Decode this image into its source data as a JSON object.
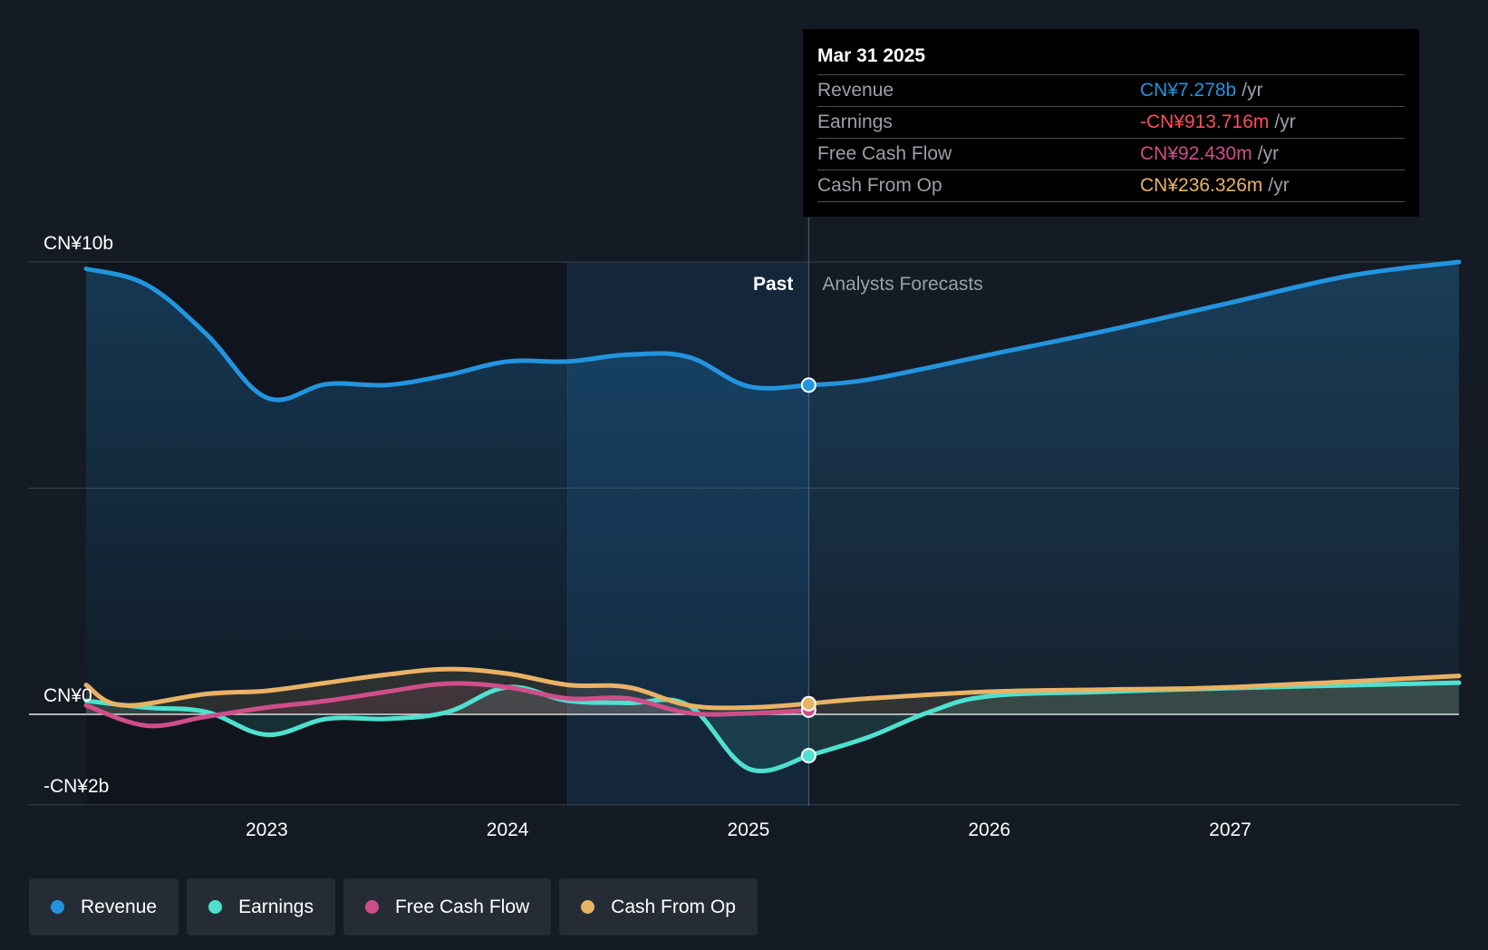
{
  "colors": {
    "background": "#151b24",
    "revenue": "#2394df",
    "earnings": "#4fe0d0",
    "free_cash_flow": "#cf4e8a",
    "cash_from_op": "#e9b265",
    "negative": "#ff4d5a"
  },
  "tooltip": {
    "date": "Mar 31 2025",
    "rows": [
      {
        "label": "Revenue",
        "value": "CN¥7.278b",
        "unit": "/yr",
        "color": "#2394df"
      },
      {
        "label": "Earnings",
        "value": "-CN¥913.716m",
        "unit": "/yr",
        "color": "#ff4d5a"
      },
      {
        "label": "Free Cash Flow",
        "value": "CN¥92.430m",
        "unit": "/yr",
        "color": "#cf4e8a"
      },
      {
        "label": "Cash From Op",
        "value": "CN¥236.326m",
        "unit": "/yr",
        "color": "#e9b265"
      }
    ]
  },
  "legend": [
    {
      "label": "Revenue",
      "color": "#2394df"
    },
    {
      "label": "Earnings",
      "color": "#4fe0d0"
    },
    {
      "label": "Free Cash Flow",
      "color": "#cf4e8a"
    },
    {
      "label": "Cash From Op",
      "color": "#e9b265"
    }
  ],
  "chart_data": {
    "type": "line",
    "title": "",
    "xlabel": "",
    "ylabel": "",
    "y_unit": "CN¥ billions",
    "x_unit": "year",
    "xlim": [
      2022.25,
      2027.95
    ],
    "ylim": [
      -2,
      10
    ],
    "y_ticks": [
      {
        "value": 10,
        "label": "CN¥10b"
      },
      {
        "value": 0,
        "label": "CN¥0"
      },
      {
        "value": -2,
        "label": "-CN¥2b"
      }
    ],
    "x_ticks": [
      {
        "value": 2023,
        "label": "2023"
      },
      {
        "value": 2024,
        "label": "2024"
      },
      {
        "value": 2025,
        "label": "2025"
      },
      {
        "value": 2026,
        "label": "2026"
      },
      {
        "value": 2027,
        "label": "2027"
      }
    ],
    "gridlines_y": [
      10,
      5,
      0,
      -2
    ],
    "past_label": "Past",
    "forecast_label": "Analysts Forecasts",
    "divider_x": 2025.25,
    "highlight_band_start": 2024.25,
    "legend_position": "bottom-left",
    "series": [
      {
        "name": "Revenue",
        "color": "#2394df",
        "fill": true,
        "past": [
          [
            2022.25,
            9.85
          ],
          [
            2022.5,
            9.5
          ],
          [
            2022.75,
            8.4
          ],
          [
            2023.0,
            7.0
          ],
          [
            2023.25,
            7.3
          ],
          [
            2023.5,
            7.28
          ],
          [
            2023.75,
            7.5
          ],
          [
            2024.0,
            7.8
          ],
          [
            2024.25,
            7.8
          ],
          [
            2024.5,
            7.95
          ],
          [
            2024.75,
            7.9
          ],
          [
            2025.0,
            7.25
          ],
          [
            2025.25,
            7.278
          ]
        ],
        "forecast": [
          [
            2025.25,
            7.278
          ],
          [
            2025.5,
            7.4
          ],
          [
            2026.0,
            7.95
          ],
          [
            2026.5,
            8.5
          ],
          [
            2027.0,
            9.1
          ],
          [
            2027.5,
            9.7
          ],
          [
            2027.95,
            10.0
          ]
        ]
      },
      {
        "name": "Earnings",
        "color": "#4fe0d0",
        "fill": true,
        "past": [
          [
            2022.25,
            0.3
          ],
          [
            2022.5,
            0.15
          ],
          [
            2022.75,
            0.05
          ],
          [
            2023.0,
            -0.45
          ],
          [
            2023.25,
            -0.1
          ],
          [
            2023.5,
            -0.1
          ],
          [
            2023.75,
            0.05
          ],
          [
            2024.0,
            0.6
          ],
          [
            2024.25,
            0.3
          ],
          [
            2024.5,
            0.25
          ],
          [
            2024.75,
            0.2
          ],
          [
            2025.0,
            -1.2
          ],
          [
            2025.25,
            -0.914
          ]
        ],
        "forecast": [
          [
            2025.25,
            -0.914
          ],
          [
            2025.5,
            -0.5
          ],
          [
            2025.75,
            0.05
          ],
          [
            2026.0,
            0.4
          ],
          [
            2026.5,
            0.5
          ],
          [
            2027.0,
            0.58
          ],
          [
            2027.95,
            0.7
          ]
        ]
      },
      {
        "name": "Free Cash Flow",
        "color": "#cf4e8a",
        "fill": true,
        "past": [
          [
            2022.25,
            0.2
          ],
          [
            2022.5,
            -0.25
          ],
          [
            2022.75,
            -0.05
          ],
          [
            2023.0,
            0.15
          ],
          [
            2023.25,
            0.3
          ],
          [
            2023.5,
            0.5
          ],
          [
            2023.75,
            0.68
          ],
          [
            2024.0,
            0.6
          ],
          [
            2024.25,
            0.35
          ],
          [
            2024.5,
            0.35
          ],
          [
            2024.75,
            0.03
          ],
          [
            2025.0,
            0.02
          ],
          [
            2025.25,
            0.092
          ]
        ],
        "forecast": []
      },
      {
        "name": "Cash From Op",
        "color": "#e9b265",
        "fill": true,
        "past": [
          [
            2022.25,
            0.65
          ],
          [
            2022.4,
            0.2
          ],
          [
            2022.75,
            0.45
          ],
          [
            2023.0,
            0.52
          ],
          [
            2023.25,
            0.7
          ],
          [
            2023.5,
            0.88
          ],
          [
            2023.75,
            1.0
          ],
          [
            2024.0,
            0.9
          ],
          [
            2024.25,
            0.65
          ],
          [
            2024.5,
            0.6
          ],
          [
            2024.75,
            0.2
          ],
          [
            2025.0,
            0.15
          ],
          [
            2025.25,
            0.236
          ]
        ],
        "forecast": [
          [
            2025.25,
            0.236
          ],
          [
            2025.5,
            0.35
          ],
          [
            2026.0,
            0.5
          ],
          [
            2026.5,
            0.55
          ],
          [
            2027.0,
            0.6
          ],
          [
            2027.95,
            0.85
          ]
        ]
      }
    ]
  }
}
